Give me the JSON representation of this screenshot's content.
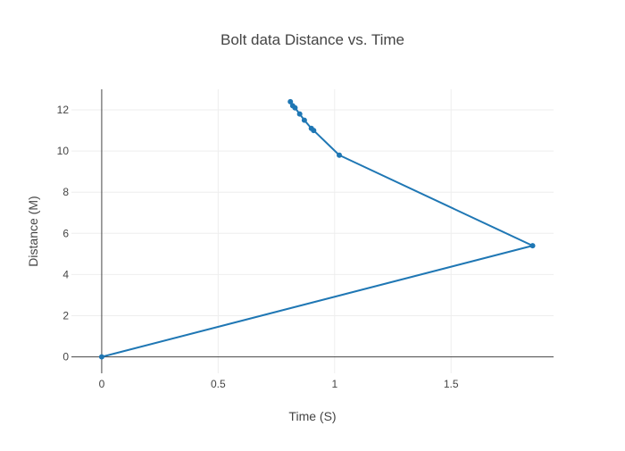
{
  "chart_data": {
    "type": "line",
    "title": "Bolt data Distance vs. Time",
    "xlabel": "Time (S)",
    "ylabel": "Distance (M)",
    "xlim": [
      -0.13,
      1.94
    ],
    "ylim": [
      -0.8,
      13.0
    ],
    "x_ticks": [
      0,
      0.5,
      1,
      1.5
    ],
    "x_tick_labels": [
      "0",
      "0.5",
      "1",
      "1.5"
    ],
    "y_ticks": [
      0,
      2,
      4,
      6,
      8,
      10,
      12
    ],
    "y_tick_labels": [
      "0",
      "2",
      "4",
      "6",
      "8",
      "10",
      "12"
    ],
    "grid": true,
    "legend": "none",
    "series": [
      {
        "color": "#1f77b4",
        "mode": "lines+markers",
        "x": [
          0,
          1.85,
          1.02,
          0.91,
          0.9,
          0.87,
          0.85,
          0.83,
          0.82,
          0.81
        ],
        "y": [
          0,
          5.4,
          9.8,
          11.0,
          11.1,
          11.5,
          11.8,
          12.1,
          12.2,
          12.4
        ]
      }
    ]
  }
}
